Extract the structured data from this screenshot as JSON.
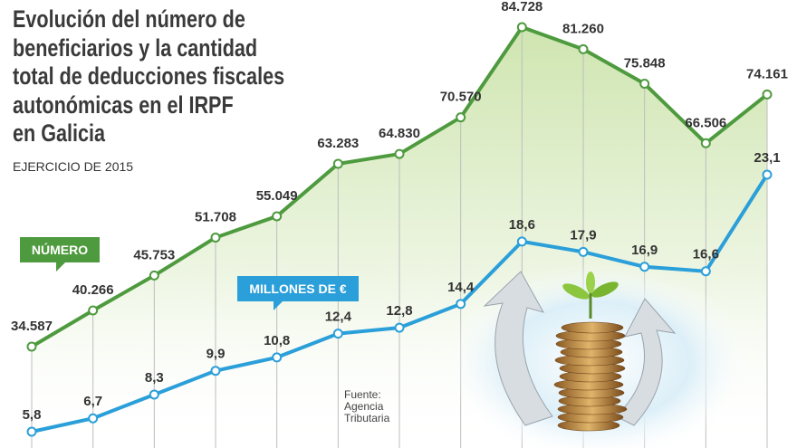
{
  "chart_data": {
    "type": "line",
    "title": "Evolución del número de\nbeneficiarios y la cantidad\ntotal de deducciones fiscales\nautonómicas en el IRPF\nen Galicia",
    "subtitle": "EJERCICIO DE 2015",
    "source": "Fuente:\nAgencia\nTributaria",
    "categories": [
      null,
      null,
      null,
      null,
      null,
      null,
      null,
      null,
      null,
      null,
      null,
      null,
      null
    ],
    "series": [
      {
        "name": "NÚMERO",
        "color": "#4e9a3e",
        "values": [
          34587,
          40266,
          45753,
          51708,
          55049,
          63283,
          64830,
          70570,
          84728,
          81260,
          75848,
          66506,
          74161
        ],
        "value_labels": [
          "34.587",
          "40.266",
          "45.753",
          "51.708",
          "55.049",
          "63.283",
          "64.830",
          "70.570",
          "84.728",
          "81.260",
          "75.848",
          "66.506",
          "74.161"
        ]
      },
      {
        "name": "MILLONES DE €",
        "color": "#2b9fd9",
        "values": [
          5.8,
          6.7,
          8.3,
          9.9,
          10.8,
          12.4,
          12.8,
          14.4,
          18.6,
          17.9,
          16.9,
          16.6,
          23.1
        ],
        "value_labels": [
          "5,8",
          "6,7",
          "8,3",
          "9,9",
          "10,8",
          "12,4",
          "12,8",
          "14,4",
          "18,6",
          "17,9",
          "16,9",
          "16,6",
          "23,1"
        ]
      }
    ]
  }
}
